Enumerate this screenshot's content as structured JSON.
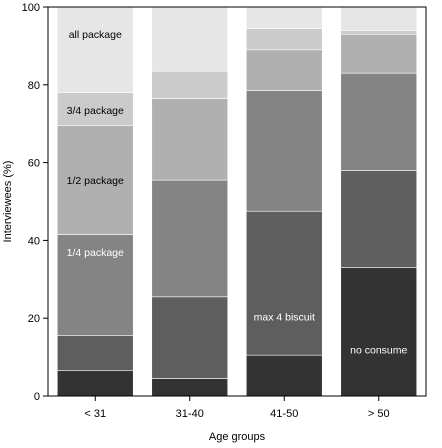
{
  "chart_data": {
    "type": "bar",
    "stacked": true,
    "title": "",
    "xlabel": "Age groups",
    "ylabel": "Interviewees (%)",
    "ylim": [
      0,
      100
    ],
    "yticks": [
      0,
      20,
      40,
      60,
      80,
      100
    ],
    "grid": false,
    "legend": "none",
    "categories": [
      "< 31",
      "31-40",
      "41-50",
      "> 50"
    ],
    "series": [
      {
        "name": "no consume",
        "color": "#333333",
        "values": [
          6.5,
          4.5,
          10.5,
          33
        ]
      },
      {
        "name": "max 4 biscuit",
        "color": "#5e5e5e",
        "values": [
          9,
          21,
          37,
          25
        ]
      },
      {
        "name": "1/4 package",
        "color": "#848484",
        "values": [
          26,
          30,
          31,
          25
        ]
      },
      {
        "name": "1/2 package",
        "color": "#b0b0b0",
        "values": [
          28,
          21,
          10.5,
          10
        ]
      },
      {
        "name": "3/4 package",
        "color": "#cbcbcb",
        "values": [
          8.5,
          7,
          5.5,
          1
        ]
      },
      {
        "name": "all package",
        "color": "#e6e6e6",
        "values": [
          22,
          16.5,
          5.5,
          6
        ]
      }
    ],
    "annotations": [
      {
        "text": "all package",
        "category": 0,
        "y": 93,
        "color": "#000000"
      },
      {
        "text": "3/4 package",
        "category": 0,
        "y": 73.5,
        "color": "#000000"
      },
      {
        "text": "1/2 package",
        "category": 0,
        "y": 55.5,
        "color": "#000000"
      },
      {
        "text": "1/4 package",
        "category": 0,
        "y": 37,
        "color": "#ffffff"
      },
      {
        "text": "max 4 biscuit",
        "category": 2,
        "y": 20.5,
        "color": "#ffffff"
      },
      {
        "text": "no consume",
        "category": 3,
        "y": 12,
        "color": "#ffffff"
      }
    ]
  }
}
